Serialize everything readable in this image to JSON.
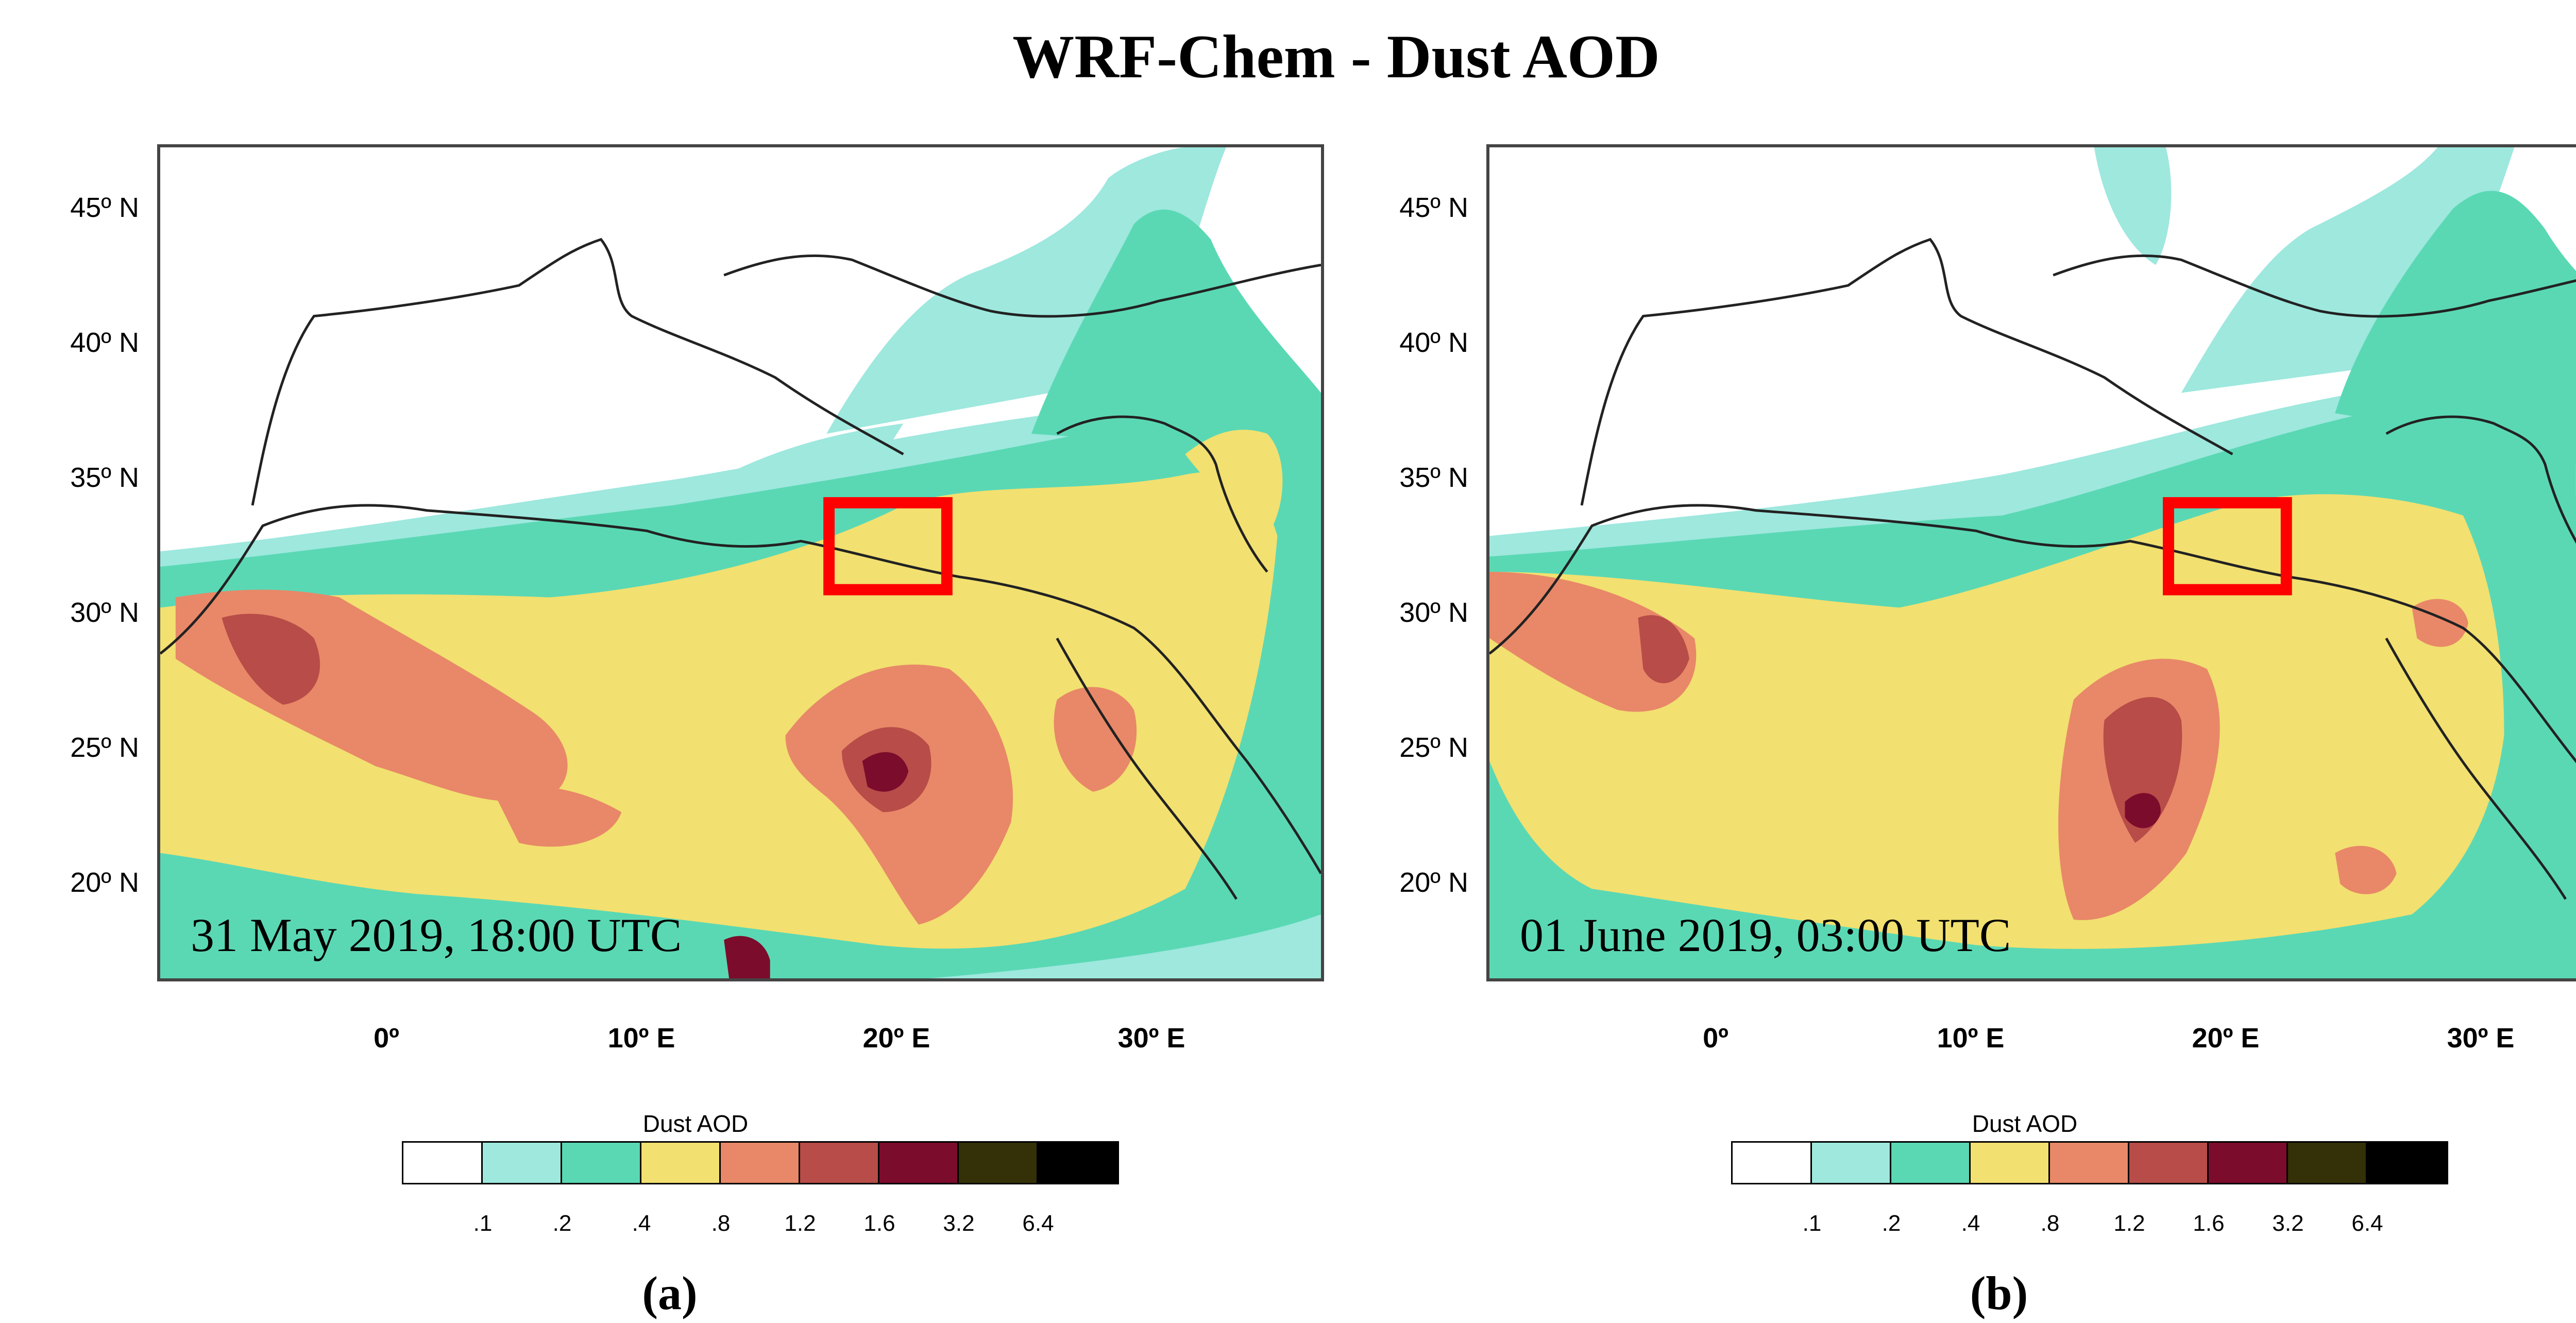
{
  "title": "WRF-Chem - Dust AOD",
  "lat_labels": [
    "45º N",
    "40º N",
    "35º N",
    "30º N",
    "25º N",
    "20º N"
  ],
  "lon_labels": [
    "0º",
    "10º E",
    "20º E",
    "30º E"
  ],
  "colorbar": {
    "title": "Dust AOD",
    "ticks": [
      ".1",
      ".2",
      ".4",
      ".8",
      "1.2",
      "1.6",
      "3.2",
      "6.4"
    ],
    "colors": [
      "#ffffff",
      "#9ee8de",
      "#5ad8b4",
      "#f2e070",
      "#e88868",
      "#b84c48",
      "#7c0c2c",
      "#343008",
      "#000000"
    ]
  },
  "box_color": "#ff0000",
  "panels": [
    {
      "id": "a",
      "date": "31 May 2019, 18:00 UTC",
      "sublabel": "(a)"
    },
    {
      "id": "b",
      "date": "01 June 2019, 03:00 UTC",
      "sublabel": "(b)"
    }
  ]
}
